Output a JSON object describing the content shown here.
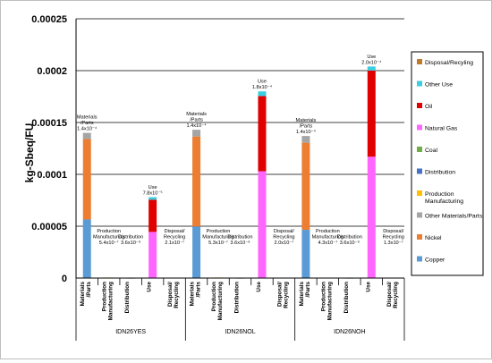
{
  "chart_data": {
    "type": "bar",
    "stacked": true,
    "ylabel": "kg-Sbeq/FU",
    "ylim": [
      0,
      0.00025
    ],
    "yticks": [
      "0",
      "0.00005",
      "0.0001",
      "0.00015",
      "0.0002",
      "0.00025"
    ],
    "grid": true,
    "legend_position": "right",
    "groups": [
      {
        "name": "IDN26YES",
        "categories": [
          "Materials /Parts",
          "Production Manufacturing",
          "Distribution",
          "Use",
          "Disposal/ Recycling"
        ]
      },
      {
        "name": "IDN26NOL",
        "categories": [
          "Materials /Parts",
          "Production Manufacturing",
          "Distribution",
          "Use",
          "Disposal/ Recycling"
        ]
      },
      {
        "name": "IDN26NOH",
        "categories": [
          "Materials /Parts",
          "Production Manufacturing",
          "Distribution",
          "Use",
          "Disposal/ Recycling"
        ]
      }
    ],
    "series": [
      {
        "name": "Copper",
        "color": "#5b9bd5",
        "values": [
          5.65e-05,
          0,
          0,
          0,
          0,
          4.97e-05,
          0,
          0,
          0,
          0,
          4.65e-05,
          0,
          0,
          0,
          0
        ]
      },
      {
        "name": "Nickel",
        "color": "#ed7d31",
        "values": [
          7.75e-05,
          0,
          0,
          0,
          0,
          8.68e-05,
          0,
          0,
          0,
          0,
          8.4e-05,
          0,
          0,
          0,
          0
        ]
      },
      {
        "name": "Other Materials/Parts",
        "color": "#a5a5a5",
        "values": [
          6e-06,
          0,
          0,
          0,
          0,
          6.5e-06,
          0,
          0,
          0,
          0,
          6.5e-06,
          0,
          0,
          0,
          0
        ]
      },
      {
        "name": "Production Manufacturing",
        "color": "#ffc000",
        "values": [
          0,
          5.4e-07,
          0,
          0,
          0,
          0,
          5.3e-07,
          0,
          0,
          0,
          0,
          4.3e-07,
          0,
          0,
          0
        ]
      },
      {
        "name": "Distribution",
        "color": "#4472c4",
        "values": [
          0,
          0,
          3.6e-09,
          0,
          0,
          0,
          0,
          3.6e-09,
          0,
          0,
          0,
          0,
          3.6e-09,
          0,
          0
        ]
      },
      {
        "name": "Coal",
        "color": "#70ad47",
        "values": [
          0,
          0,
          0,
          0,
          0,
          0,
          0,
          0,
          0,
          0,
          0,
          0,
          0,
          0,
          0
        ]
      },
      {
        "name": "Natural Gas",
        "color": "#ff66ff",
        "values": [
          0,
          0,
          0,
          4.45e-05,
          0,
          0,
          0,
          0,
          0.000103,
          0,
          0,
          0,
          0,
          0.000117,
          0
        ]
      },
      {
        "name": "Oil",
        "color": "#e00000",
        "values": [
          0,
          0,
          0,
          3.1e-05,
          0,
          0,
          0,
          0,
          7.25e-05,
          0,
          0,
          0,
          0,
          8.3e-05,
          0
        ]
      },
      {
        "name": "Other Use",
        "color": "#3ccee0",
        "values": [
          0,
          0,
          0,
          2.5e-06,
          0,
          0,
          0,
          0,
          4.5e-06,
          0,
          0,
          0,
          0,
          4e-06,
          0
        ]
      },
      {
        "name": "Disposal/Recyling",
        "color": "#c07a2c",
        "values": [
          0,
          0,
          0,
          0,
          2.1e-07,
          0,
          0,
          0,
          0,
          2e-07,
          0,
          0,
          0,
          0,
          1.3e-07
        ]
      }
    ],
    "legend": [
      "Disposal/Recyling",
      "Other Use",
      "Oil",
      "Natural Gas",
      "Coal",
      "Distribution",
      "Production Manufacturing",
      "Other Materials/Parts",
      "Nickel",
      "Copper"
    ],
    "annotations": [
      {
        "bar": 0,
        "lines": [
          "Materials",
          "/Parts",
          "1.4x10⁻⁴"
        ]
      },
      {
        "bar": 1,
        "lines": [
          "Production",
          "Manufacturing",
          "5.4x10⁻⁷"
        ]
      },
      {
        "bar": 2,
        "lines": [
          "Distribution",
          "3.6x10⁻⁹"
        ]
      },
      {
        "bar": 3,
        "lines": [
          "Use",
          "7.8x10⁻⁵"
        ]
      },
      {
        "bar": 4,
        "lines": [
          "Disposal/",
          "Recycling",
          "2.1x10⁻⁷"
        ]
      },
      {
        "bar": 5,
        "lines": [
          "Materials",
          "/Parts",
          "1.4x10⁻⁴"
        ]
      },
      {
        "bar": 6,
        "lines": [
          "Production",
          "Manufacturing",
          "5.3x10⁻⁷"
        ]
      },
      {
        "bar": 7,
        "lines": [
          "Distribution",
          "3.6x10⁻⁹"
        ]
      },
      {
        "bar": 8,
        "lines": [
          "Use",
          "1.8x10⁻⁴"
        ]
      },
      {
        "bar": 9,
        "lines": [
          "Disposal/",
          "Recycling",
          "2.0x10⁻⁷"
        ]
      },
      {
        "bar": 10,
        "lines": [
          "Materials",
          "/Parts",
          "1.4x10⁻⁴"
        ]
      },
      {
        "bar": 11,
        "lines": [
          "Production",
          "Manufacturing",
          "4.3x10⁻⁷"
        ]
      },
      {
        "bar": 12,
        "lines": [
          "Distribution",
          "3.6x10⁻⁹"
        ]
      },
      {
        "bar": 13,
        "lines": [
          "Use",
          "2.0x10⁻⁴"
        ]
      },
      {
        "bar": 14,
        "lines": [
          "Disposal/",
          "Recycling",
          "1.3x10⁻⁷"
        ]
      }
    ]
  }
}
